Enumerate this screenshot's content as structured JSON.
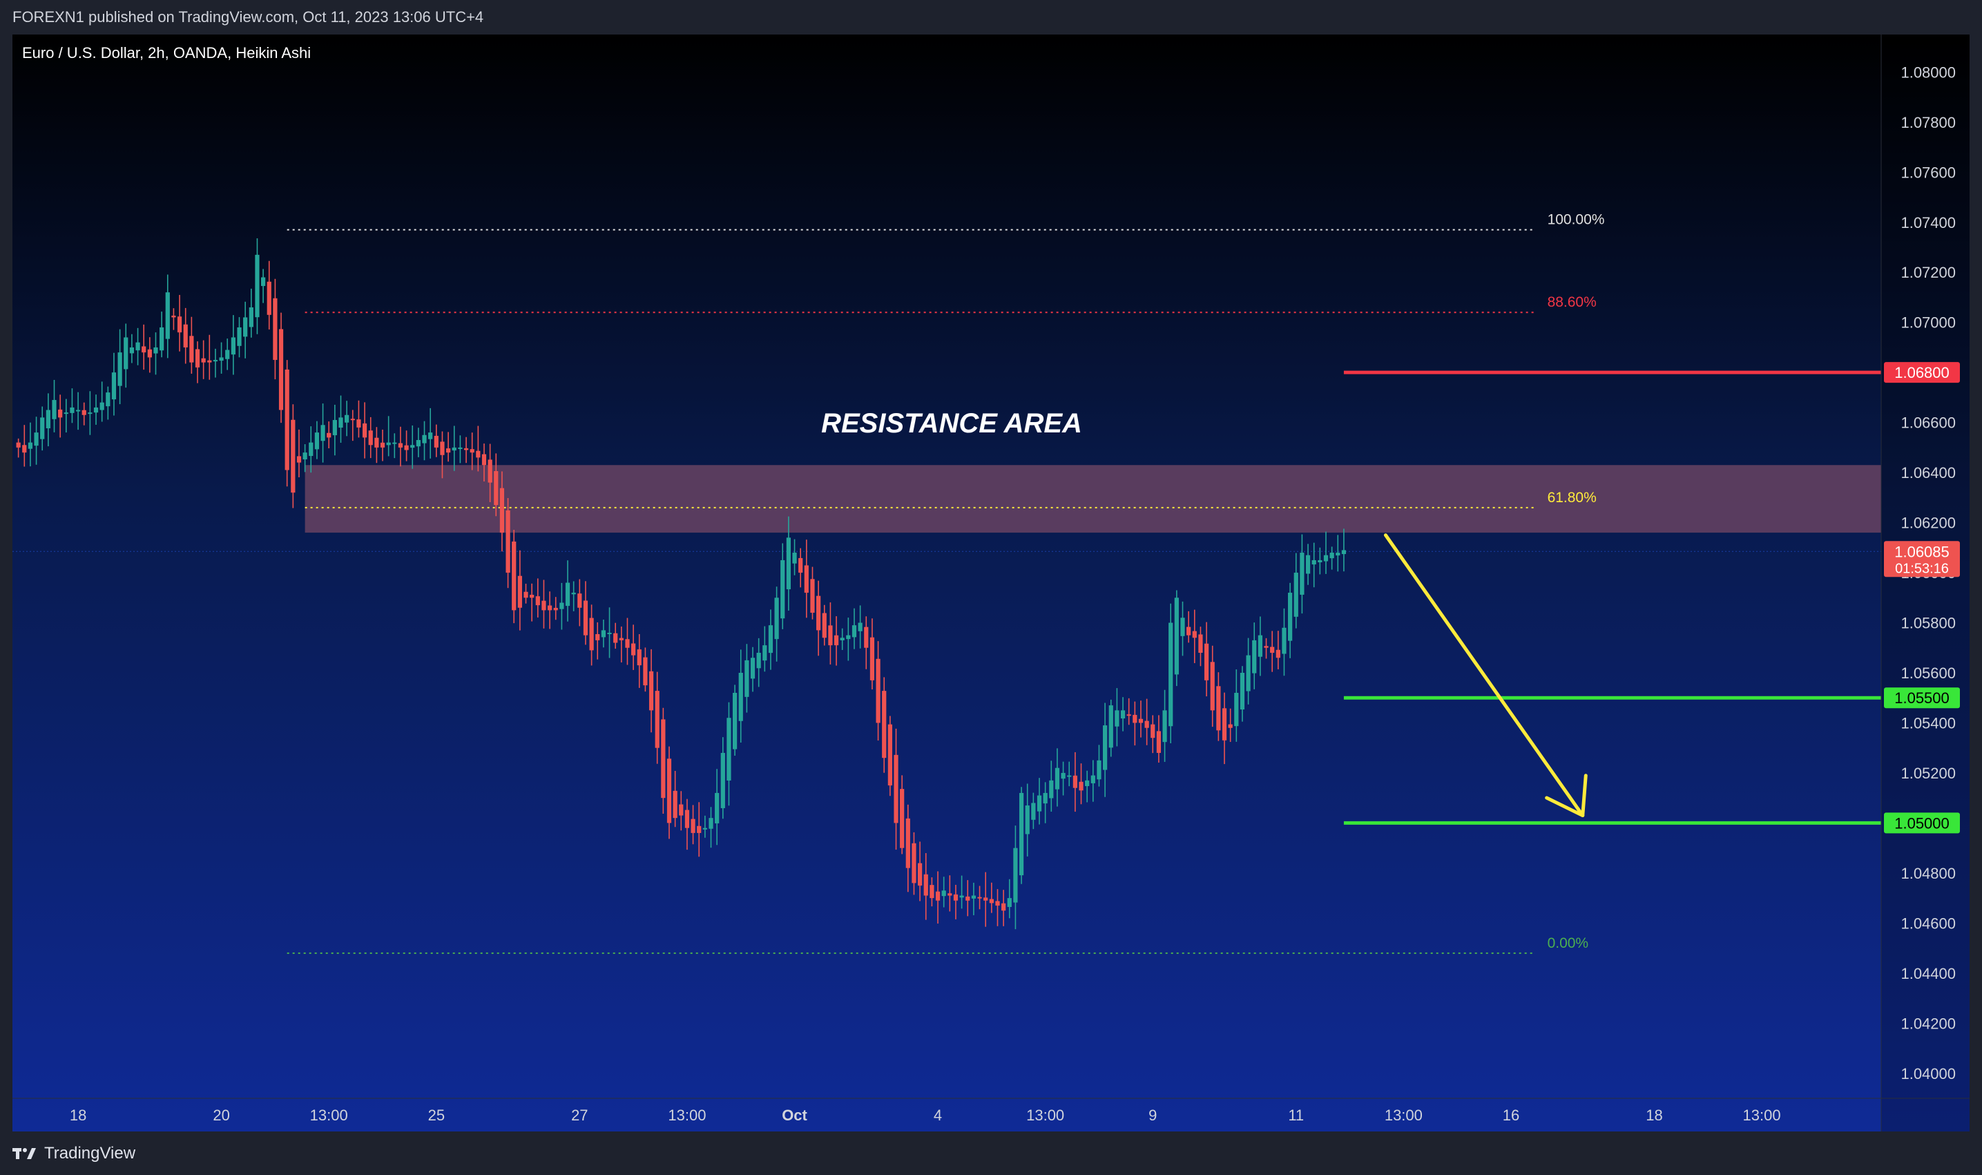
{
  "header": {
    "published": "FOREXN1 published on TradingView.com, Oct 11, 2023 13:06 UTC+4"
  },
  "footer": {
    "brand": "TradingView",
    "logo_icon": "tradingview-logo-icon"
  },
  "colors": {
    "bull": "#26a69a",
    "bear": "#ef5350",
    "resistance_line": "#f23645",
    "support_line": "#39e639",
    "zone_fill": "#6b4463",
    "arrow": "#ffeb3b",
    "fib_100": "#e0e0e0",
    "fib_886": "#f23645",
    "fib_618": "#ffeb3b",
    "fib_0": "#4caf50"
  },
  "chart_data": {
    "type": "candlestick",
    "title": "Euro / U.S. Dollar, 2h, OANDA, Heikin Ashi",
    "ylim": [
      1.039,
      1.0815
    ],
    "y_ticks": [
      "1.08000",
      "1.07800",
      "1.07600",
      "1.07400",
      "1.07200",
      "1.07000",
      "1.06800",
      "1.06600",
      "1.06400",
      "1.06200",
      "1.06000",
      "1.05800",
      "1.05600",
      "1.05400",
      "1.05200",
      "1.05000",
      "1.04800",
      "1.04600",
      "1.04400",
      "1.04200",
      "1.04000"
    ],
    "x_ticks": [
      {
        "label": "18",
        "i": 10
      },
      {
        "label": "20",
        "i": 34
      },
      {
        "label": "13:00",
        "i": 52
      },
      {
        "label": "25",
        "i": 70
      },
      {
        "label": "27",
        "i": 94
      },
      {
        "label": "13:00",
        "i": 112
      },
      {
        "label": "Oct",
        "i": 130
      },
      {
        "label": "4",
        "i": 154
      },
      {
        "label": "13:00",
        "i": 172
      },
      {
        "label": "9",
        "i": 190
      },
      {
        "label": "11",
        "i": 214
      },
      {
        "label": "13:00",
        "i": 232
      },
      {
        "label": "16",
        "i": 250
      },
      {
        "label": "18",
        "i": 274
      },
      {
        "label": "13:00",
        "i": 292
      }
    ],
    "x_range": [
      -1,
      312
    ],
    "resistance_zone": {
      "low": 1.0616,
      "high": 1.0643,
      "label": "RESISTANCE AREA",
      "i_start": 48,
      "i_end": 312
    },
    "fibonacci": [
      {
        "label": "100.00%",
        "price": 1.0737,
        "i_start": 45,
        "i_end": 254
      },
      {
        "label": "88.60%",
        "price": 1.0704,
        "i_start": 48,
        "i_end": 254
      },
      {
        "label": "61.80%",
        "price": 1.0626,
        "i_start": 48,
        "i_end": 254
      },
      {
        "label": "0.00%",
        "price": 1.0448,
        "i_start": 45,
        "i_end": 254
      }
    ],
    "levels": [
      {
        "name": "resistance",
        "price": 1.068,
        "label": "1.06800",
        "i_start": 222
      },
      {
        "name": "support-1",
        "price": 1.055,
        "label": "1.05500",
        "i_start": 222
      },
      {
        "name": "support-2",
        "price": 1.05,
        "label": "1.05000",
        "i_start": 222
      }
    ],
    "current_price": {
      "price": 1.06085,
      "label": "1.06085",
      "countdown": "01:53:16"
    },
    "forecast_arrow": {
      "from": {
        "i": 229,
        "price": 1.0615
      },
      "to": {
        "i": 262,
        "price": 1.0503
      }
    },
    "closes": [
      1.065,
      1.0648,
      1.0652,
      1.0656,
      1.0662,
      1.0665,
      1.0669,
      1.0662,
      1.0664,
      1.0666,
      1.0665,
      1.0663,
      1.0664,
      1.0666,
      1.0668,
      1.0672,
      1.068,
      1.0688,
      1.0694,
      1.069,
      1.0692,
      1.0688,
      1.0686,
      1.069,
      1.0698,
      1.0712,
      1.0702,
      1.0696,
      1.069,
      1.0684,
      1.0682,
      1.0684,
      1.0684,
      1.0685,
      1.0686,
      1.0689,
      1.0694,
      1.0698,
      1.0702,
      1.0706,
      1.0727,
      1.0718,
      1.0703,
      1.0685,
      1.0665,
      1.0641,
      1.0632,
      1.0644,
      1.0648,
      1.0652,
      1.0656,
      1.0659,
      1.0654,
      1.0661,
      1.0662,
      1.0663,
      1.0661,
      1.0658,
      1.0654,
      1.0651,
      1.065,
      1.065,
      1.0652,
      1.0652,
      1.065,
      1.0649,
      1.0651,
      1.0653,
      1.0655,
      1.0656,
      1.065,
      1.0647,
      1.0648,
      1.065,
      1.065,
      1.0649,
      1.0648,
      1.0646,
      1.0643,
      1.0636,
      1.0627,
      1.0616,
      1.06,
      1.0585,
      1.0586,
      1.059,
      1.059,
      1.0587,
      1.0585,
      1.0585,
      1.0585,
      1.0588,
      1.0596,
      1.0592,
      1.0586,
      1.0575,
      1.0569,
      1.0573,
      1.0577,
      1.0576,
      1.0572,
      1.0573,
      1.057,
      1.0567,
      1.0563,
      1.0555,
      1.0545,
      1.053,
      1.051,
      1.05,
      1.0502,
      1.0503,
      1.0498,
      1.0496,
      1.0496,
      1.0498,
      1.0502,
      1.0512,
      1.0528,
      1.0542,
      1.0552,
      1.056,
      1.0565,
      1.0566,
      1.0568,
      1.0571,
      1.0579,
      1.059,
      1.0605,
      1.0614,
      1.0608,
      1.06,
      1.0592,
      1.0584,
      1.0577,
      1.0574,
      1.0571,
      1.0571,
      1.0574,
      1.0575,
      1.0579,
      1.058,
      1.057,
      1.0557,
      1.054,
      1.0526,
      1.0515,
      1.05,
      1.049,
      1.0482,
      1.0476,
      1.0475,
      1.0471,
      1.047,
      1.0469,
      1.0473,
      1.0471,
      1.0469,
      1.0471,
      1.0469,
      1.0471,
      1.047,
      1.0469,
      1.0468,
      1.0467,
      1.0465,
      1.047,
      1.049,
      1.0512,
      1.0507,
      1.0508,
      1.0511,
      1.0512,
      1.0517,
      1.0522,
      1.052,
      1.0519,
      1.0514,
      1.0513,
      1.0517,
      1.0519,
      1.0525,
      1.0539,
      1.0547,
      1.0545,
      1.0545,
      1.0543,
      1.054,
      1.054,
      1.0538,
      1.0534,
      1.0528,
      1.0545,
      1.058,
      1.059,
      1.0582,
      1.0575,
      1.0574,
      1.0568,
      1.0557,
      1.0545,
      1.0537,
      1.0533,
      1.0538,
      1.0552,
      1.056,
      1.0567,
      1.0573,
      1.0575,
      1.057,
      1.0568,
      1.0566,
      1.0578,
      1.0592,
      1.06,
      1.0608,
      1.0607,
      1.0605,
      1.0605,
      1.0607,
      1.0608,
      1.0608,
      1.0609
    ]
  }
}
